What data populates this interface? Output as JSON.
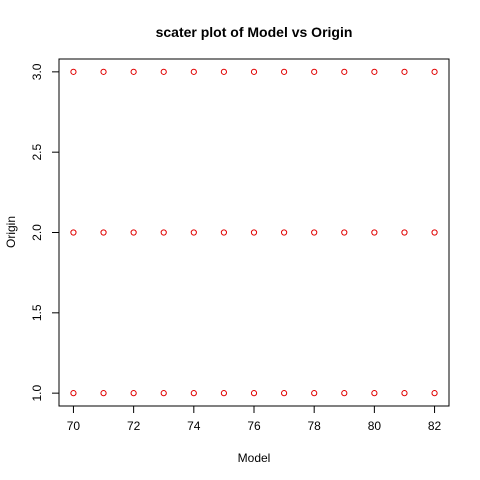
{
  "chart_data": {
    "type": "scatter",
    "title": "scater plot of Model vs Origin",
    "xlabel": "Model",
    "ylabel": "Origin",
    "xlim": [
      69.52,
      82.48
    ],
    "ylim": [
      0.92,
      3.08
    ],
    "xticks": [
      70,
      72,
      74,
      76,
      78,
      80,
      82
    ],
    "xtick_labels": [
      "70",
      "72",
      "74",
      "76",
      "78",
      "80",
      "82"
    ],
    "yticks": [
      1.0,
      1.5,
      2.0,
      2.5,
      3.0
    ],
    "ytick_labels": [
      "1.0",
      "1.5",
      "2.0",
      "2.5",
      "3.0"
    ],
    "point_color": "#e00000",
    "marker": "open-circle",
    "grid": false,
    "legend": false,
    "points": [
      {
        "x": 70,
        "y": 1
      },
      {
        "x": 71,
        "y": 1
      },
      {
        "x": 72,
        "y": 1
      },
      {
        "x": 73,
        "y": 1
      },
      {
        "x": 74,
        "y": 1
      },
      {
        "x": 75,
        "y": 1
      },
      {
        "x": 76,
        "y": 1
      },
      {
        "x": 77,
        "y": 1
      },
      {
        "x": 78,
        "y": 1
      },
      {
        "x": 79,
        "y": 1
      },
      {
        "x": 80,
        "y": 1
      },
      {
        "x": 81,
        "y": 1
      },
      {
        "x": 82,
        "y": 1
      },
      {
        "x": 70,
        "y": 2
      },
      {
        "x": 71,
        "y": 2
      },
      {
        "x": 72,
        "y": 2
      },
      {
        "x": 73,
        "y": 2
      },
      {
        "x": 74,
        "y": 2
      },
      {
        "x": 75,
        "y": 2
      },
      {
        "x": 76,
        "y": 2
      },
      {
        "x": 77,
        "y": 2
      },
      {
        "x": 78,
        "y": 2
      },
      {
        "x": 79,
        "y": 2
      },
      {
        "x": 80,
        "y": 2
      },
      {
        "x": 81,
        "y": 2
      },
      {
        "x": 82,
        "y": 2
      },
      {
        "x": 70,
        "y": 3
      },
      {
        "x": 71,
        "y": 3
      },
      {
        "x": 72,
        "y": 3
      },
      {
        "x": 73,
        "y": 3
      },
      {
        "x": 74,
        "y": 3
      },
      {
        "x": 75,
        "y": 3
      },
      {
        "x": 76,
        "y": 3
      },
      {
        "x": 77,
        "y": 3
      },
      {
        "x": 78,
        "y": 3
      },
      {
        "x": 79,
        "y": 3
      },
      {
        "x": 80,
        "y": 3
      },
      {
        "x": 81,
        "y": 3
      },
      {
        "x": 82,
        "y": 3
      }
    ]
  }
}
